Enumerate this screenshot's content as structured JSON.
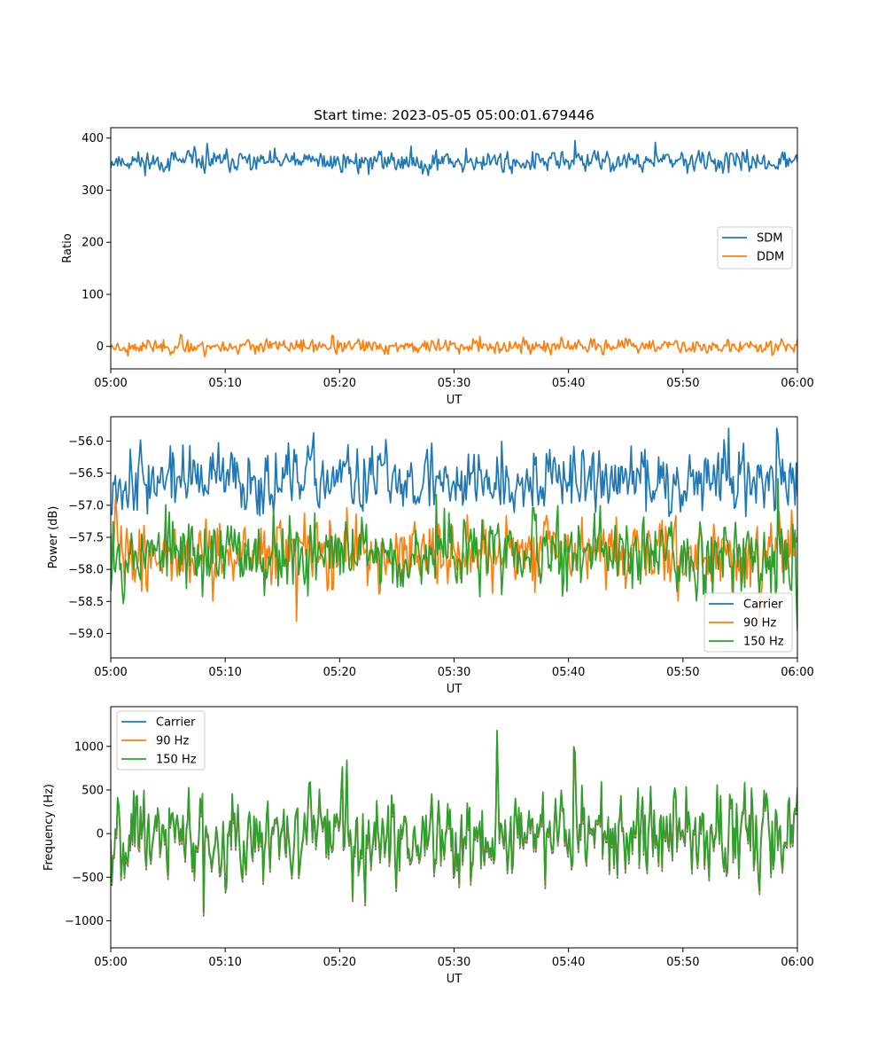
{
  "figure": {
    "title": "Start time: 2023-05-05 05:00:01.679446"
  },
  "chart_data": [
    {
      "type": "line",
      "title": "Start time: 2023-05-05 05:00:01.679446",
      "xlabel": "UT",
      "ylabel": "Ratio",
      "x_ticks": [
        "05:00",
        "05:10",
        "05:20",
        "05:30",
        "05:40",
        "05:50",
        "06:00"
      ],
      "xlim_minutes": [
        0,
        60
      ],
      "ylim": [
        -43,
        420
      ],
      "y_ticks": [
        0,
        100,
        200,
        300,
        400
      ],
      "legend_position": "center-right",
      "grid": false,
      "series": [
        {
          "name": "SDM",
          "color": "#1f77b4",
          "mean": 355,
          "jitter": 12,
          "min": 312,
          "max": 398,
          "seed": 11
        },
        {
          "name": "DDM",
          "color": "#ff7f0e",
          "mean": 0,
          "jitter": 8,
          "min": -20,
          "max": 23,
          "seed": 23
        }
      ]
    },
    {
      "type": "line",
      "xlabel": "UT",
      "ylabel": "Power (dB)",
      "x_ticks": [
        "05:00",
        "05:10",
        "05:20",
        "05:30",
        "05:40",
        "05:50",
        "06:00"
      ],
      "xlim_minutes": [
        0,
        60
      ],
      "ylim": [
        -59.38,
        -55.62
      ],
      "y_ticks": [
        -59.0,
        -58.5,
        -58.0,
        -57.5,
        -57.0,
        -56.5,
        -56.0
      ],
      "legend_position": "lower-right",
      "grid": false,
      "series": [
        {
          "name": "Carrier",
          "color": "#1f77b4",
          "mean": -56.6,
          "jitter": 0.3,
          "min": -57.6,
          "max": -55.8,
          "seed": 37
        },
        {
          "name": "90 Hz",
          "color": "#ff7f0e",
          "mean": -57.75,
          "jitter": 0.3,
          "min": -58.9,
          "max": -56.9,
          "seed": 41
        },
        {
          "name": "150 Hz",
          "color": "#2ca02c",
          "mean": -57.75,
          "jitter": 0.35,
          "min": -59.0,
          "max": -56.55,
          "seed": 53
        }
      ]
    },
    {
      "type": "line",
      "xlabel": "UT",
      "ylabel": "Frequency (Hz)",
      "x_ticks": [
        "05:00",
        "05:10",
        "05:20",
        "05:30",
        "05:40",
        "05:50",
        "06:00"
      ],
      "xlim_minutes": [
        0,
        60
      ],
      "ylim": [
        -1310,
        1455
      ],
      "y_ticks": [
        -1000,
        -500,
        0,
        500,
        1000
      ],
      "legend_position": "upper-left",
      "grid": false,
      "series": [
        {
          "name": "Carrier",
          "color": "#1f77b4",
          "mean": -20,
          "jitter": 300,
          "min": -1190,
          "max": 1300,
          "seed": 67
        },
        {
          "name": "90 Hz",
          "color": "#ff7f0e",
          "mean": 0,
          "jitter": 300,
          "min": -1150,
          "max": 1330,
          "seed": 67
        },
        {
          "name": "150 Hz",
          "color": "#2ca02c",
          "mean": 20,
          "jitter": 300,
          "min": -1110,
          "max": 1360,
          "seed": 67
        }
      ]
    }
  ]
}
